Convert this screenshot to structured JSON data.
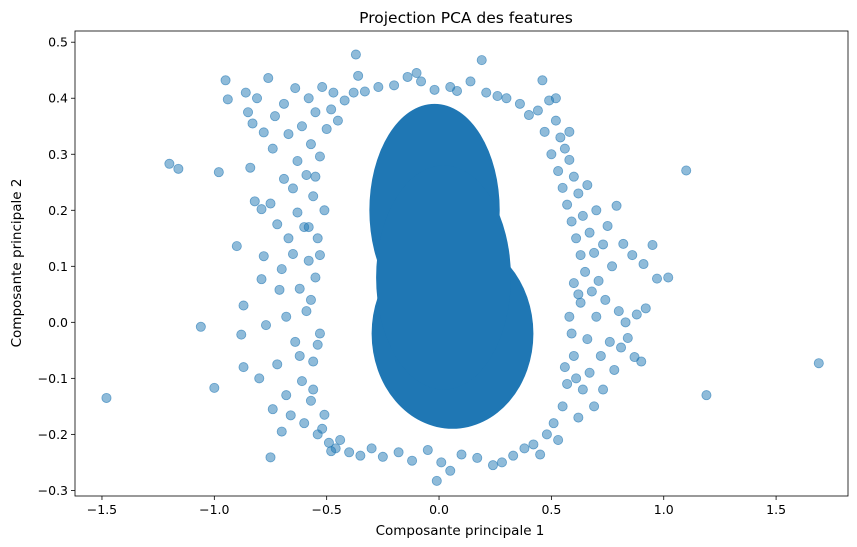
{
  "chart_data": {
    "type": "scatter",
    "title": "Projection PCA des features",
    "xlabel": "Composante principale 1",
    "ylabel": "Composante principale 2",
    "xlim": [
      -1.62,
      1.82
    ],
    "ylim": [
      -0.31,
      0.52
    ],
    "xticks": [
      -1.5,
      -1.0,
      -0.5,
      0.0,
      0.5,
      1.0,
      1.5
    ],
    "xtick_labels": [
      "−1.5",
      "−1.0",
      "−0.5",
      "0.0",
      "0.5",
      "1.0",
      "1.5"
    ],
    "yticks": [
      -0.3,
      -0.2,
      -0.1,
      0.0,
      0.1,
      0.2,
      0.3,
      0.4,
      0.5
    ],
    "ytick_labels": [
      "−0.3",
      "−0.2",
      "−0.1",
      "0.0",
      "0.1",
      "0.2",
      "0.3",
      "0.4",
      "0.5"
    ],
    "grid": false,
    "legend": "none",
    "marker_color": "#1f77b4",
    "marker_alpha": 0.5,
    "dense_core": {
      "description": "dense cloud of overlapping points",
      "lobes": [
        {
          "cx": -0.02,
          "cy": 0.2,
          "rx": 0.29,
          "ry": 0.19
        },
        {
          "cx": 0.06,
          "cy": -0.02,
          "rx": 0.36,
          "ry": 0.17
        },
        {
          "cx": 0.02,
          "cy": 0.08,
          "rx": 0.3,
          "ry": 0.2
        }
      ]
    },
    "points": [
      {
        "x": -1.48,
        "y": -0.135
      },
      {
        "x": -1.2,
        "y": 0.283
      },
      {
        "x": -1.16,
        "y": 0.274
      },
      {
        "x": -1.06,
        "y": -0.008
      },
      {
        "x": -1.0,
        "y": -0.117
      },
      {
        "x": -0.98,
        "y": 0.268
      },
      {
        "x": -0.95,
        "y": 0.432
      },
      {
        "x": -0.94,
        "y": 0.398
      },
      {
        "x": -0.9,
        "y": 0.136
      },
      {
        "x": -0.88,
        "y": -0.022
      },
      {
        "x": -0.87,
        "y": 0.03
      },
      {
        "x": -0.87,
        "y": -0.08
      },
      {
        "x": -0.86,
        "y": 0.41
      },
      {
        "x": -0.85,
        "y": 0.375
      },
      {
        "x": -0.84,
        "y": 0.276
      },
      {
        "x": -0.83,
        "y": 0.355
      },
      {
        "x": -0.82,
        "y": 0.216
      },
      {
        "x": -0.81,
        "y": 0.4
      },
      {
        "x": -0.8,
        "y": -0.1
      },
      {
        "x": -0.79,
        "y": 0.202
      },
      {
        "x": -0.79,
        "y": 0.077
      },
      {
        "x": -0.78,
        "y": 0.118
      },
      {
        "x": -0.78,
        "y": 0.339
      },
      {
        "x": -0.77,
        "y": -0.005
      },
      {
        "x": -0.76,
        "y": 0.436
      },
      {
        "x": -0.75,
        "y": -0.241
      },
      {
        "x": -0.75,
        "y": 0.212
      },
      {
        "x": -0.74,
        "y": 0.31
      },
      {
        "x": -0.74,
        "y": -0.155
      },
      {
        "x": -0.73,
        "y": 0.368
      },
      {
        "x": -0.72,
        "y": -0.075
      },
      {
        "x": -0.72,
        "y": 0.175
      },
      {
        "x": -0.71,
        "y": 0.058
      },
      {
        "x": -0.7,
        "y": 0.095
      },
      {
        "x": -0.7,
        "y": -0.195
      },
      {
        "x": -0.69,
        "y": 0.39
      },
      {
        "x": -0.69,
        "y": 0.256
      },
      {
        "x": -0.68,
        "y": 0.01
      },
      {
        "x": -0.68,
        "y": -0.13
      },
      {
        "x": -0.67,
        "y": 0.15
      },
      {
        "x": -0.67,
        "y": 0.336
      },
      {
        "x": -0.66,
        "y": -0.166
      },
      {
        "x": -0.65,
        "y": 0.239
      },
      {
        "x": -0.65,
        "y": 0.122
      },
      {
        "x": -0.64,
        "y": 0.418
      },
      {
        "x": -0.64,
        "y": -0.035
      },
      {
        "x": -0.63,
        "y": 0.288
      },
      {
        "x": -0.63,
        "y": 0.196
      },
      {
        "x": -0.62,
        "y": -0.06
      },
      {
        "x": -0.62,
        "y": 0.06
      },
      {
        "x": -0.61,
        "y": 0.35
      },
      {
        "x": -0.61,
        "y": -0.105
      },
      {
        "x": -0.6,
        "y": 0.17
      },
      {
        "x": -0.6,
        "y": -0.18
      },
      {
        "x": -0.59,
        "y": 0.263
      },
      {
        "x": -0.59,
        "y": 0.02
      },
      {
        "x": -0.58,
        "y": 0.4
      },
      {
        "x": -0.58,
        "y": 0.11
      },
      {
        "x": -0.57,
        "y": -0.14
      },
      {
        "x": -0.57,
        "y": 0.318
      },
      {
        "x": -0.56,
        "y": 0.225
      },
      {
        "x": -0.56,
        "y": -0.07
      },
      {
        "x": -0.55,
        "y": 0.08
      },
      {
        "x": -0.55,
        "y": 0.375
      },
      {
        "x": -0.54,
        "y": -0.2
      },
      {
        "x": -0.54,
        "y": 0.15
      },
      {
        "x": -0.53,
        "y": 0.296
      },
      {
        "x": -0.53,
        "y": -0.02
      },
      {
        "x": -0.52,
        "y": 0.42
      },
      {
        "x": -0.51,
        "y": -0.165
      },
      {
        "x": -0.51,
        "y": 0.2
      },
      {
        "x": -0.5,
        "y": 0.345
      },
      {
        "x": -0.49,
        "y": -0.215
      },
      {
        "x": -0.48,
        "y": 0.38
      },
      {
        "x": -0.47,
        "y": 0.41
      },
      {
        "x": -0.46,
        "y": -0.225
      },
      {
        "x": -0.45,
        "y": 0.36
      },
      {
        "x": -0.44,
        "y": -0.21
      },
      {
        "x": -0.42,
        "y": 0.396
      },
      {
        "x": -0.4,
        "y": -0.232
      },
      {
        "x": -0.38,
        "y": 0.41
      },
      {
        "x": -0.37,
        "y": 0.478
      },
      {
        "x": -0.36,
        "y": 0.44
      },
      {
        "x": -0.35,
        "y": -0.238
      },
      {
        "x": -0.33,
        "y": 0.412
      },
      {
        "x": -0.3,
        "y": -0.225
      },
      {
        "x": -0.27,
        "y": 0.42
      },
      {
        "x": -0.25,
        "y": -0.24
      },
      {
        "x": -0.2,
        "y": 0.423
      },
      {
        "x": -0.18,
        "y": -0.232
      },
      {
        "x": -0.14,
        "y": 0.438
      },
      {
        "x": -0.12,
        "y": -0.247
      },
      {
        "x": -0.08,
        "y": 0.43
      },
      {
        "x": -0.05,
        "y": -0.228
      },
      {
        "x": -0.02,
        "y": 0.415
      },
      {
        "x": -0.01,
        "y": -0.283
      },
      {
        "x": 0.01,
        "y": -0.25
      },
      {
        "x": 0.05,
        "y": 0.42
      },
      {
        "x": 0.08,
        "y": 0.413
      },
      {
        "x": 0.1,
        "y": -0.236
      },
      {
        "x": 0.14,
        "y": 0.43
      },
      {
        "x": 0.17,
        "y": -0.242
      },
      {
        "x": 0.19,
        "y": 0.468
      },
      {
        "x": 0.21,
        "y": 0.41
      },
      {
        "x": 0.24,
        "y": -0.255
      },
      {
        "x": 0.26,
        "y": 0.404
      },
      {
        "x": 0.28,
        "y": -0.25
      },
      {
        "x": 0.3,
        "y": 0.4
      },
      {
        "x": 0.33,
        "y": -0.238
      },
      {
        "x": 0.36,
        "y": 0.39
      },
      {
        "x": 0.38,
        "y": -0.225
      },
      {
        "x": 0.4,
        "y": 0.37
      },
      {
        "x": 0.42,
        "y": -0.218
      },
      {
        "x": 0.44,
        "y": 0.378
      },
      {
        "x": 0.45,
        "y": -0.236
      },
      {
        "x": 0.46,
        "y": 0.432
      },
      {
        "x": 0.47,
        "y": 0.34
      },
      {
        "x": 0.48,
        "y": -0.2
      },
      {
        "x": 0.49,
        "y": 0.396
      },
      {
        "x": 0.5,
        "y": 0.3
      },
      {
        "x": 0.51,
        "y": -0.18
      },
      {
        "x": 0.52,
        "y": 0.36
      },
      {
        "x": 0.53,
        "y": -0.21
      },
      {
        "x": 0.53,
        "y": 0.27
      },
      {
        "x": 0.54,
        "y": 0.33
      },
      {
        "x": 0.55,
        "y": -0.15
      },
      {
        "x": 0.55,
        "y": 0.24
      },
      {
        "x": 0.56,
        "y": 0.31
      },
      {
        "x": 0.57,
        "y": -0.11
      },
      {
        "x": 0.57,
        "y": 0.21
      },
      {
        "x": 0.58,
        "y": 0.29
      },
      {
        "x": 0.59,
        "y": 0.18
      },
      {
        "x": 0.6,
        "y": 0.26
      },
      {
        "x": 0.6,
        "y": -0.06
      },
      {
        "x": 0.61,
        "y": 0.15
      },
      {
        "x": 0.62,
        "y": 0.23
      },
      {
        "x": 0.62,
        "y": -0.17
      },
      {
        "x": 0.63,
        "y": 0.12
      },
      {
        "x": 0.63,
        "y": 0.035
      },
      {
        "x": 0.64,
        "y": 0.19
      },
      {
        "x": 0.64,
        "y": -0.12
      },
      {
        "x": 0.65,
        "y": 0.09
      },
      {
        "x": 0.66,
        "y": 0.245
      },
      {
        "x": 0.66,
        "y": -0.03
      },
      {
        "x": 0.67,
        "y": 0.16
      },
      {
        "x": 0.67,
        "y": -0.09
      },
      {
        "x": 0.68,
        "y": 0.055
      },
      {
        "x": 0.69,
        "y": 0.124
      },
      {
        "x": 0.69,
        "y": -0.15
      },
      {
        "x": 0.7,
        "y": 0.2
      },
      {
        "x": 0.7,
        "y": 0.01
      },
      {
        "x": 0.71,
        "y": 0.074
      },
      {
        "x": 0.72,
        "y": -0.06
      },
      {
        "x": 0.73,
        "y": 0.139
      },
      {
        "x": 0.73,
        "y": -0.12
      },
      {
        "x": 0.74,
        "y": 0.04
      },
      {
        "x": 0.75,
        "y": 0.172
      },
      {
        "x": 0.76,
        "y": -0.035
      },
      {
        "x": 0.77,
        "y": 0.1
      },
      {
        "x": 0.78,
        "y": -0.085
      },
      {
        "x": 0.79,
        "y": 0.208
      },
      {
        "x": 0.8,
        "y": 0.02
      },
      {
        "x": 0.81,
        "y": -0.045
      },
      {
        "x": 0.82,
        "y": 0.14
      },
      {
        "x": 0.83,
        "y": 0.0
      },
      {
        "x": 0.84,
        "y": -0.028
      },
      {
        "x": 0.86,
        "y": 0.12
      },
      {
        "x": 0.87,
        "y": -0.062
      },
      {
        "x": 0.88,
        "y": 0.014
      },
      {
        "x": 0.9,
        "y": -0.07
      },
      {
        "x": 0.91,
        "y": 0.104
      },
      {
        "x": 0.92,
        "y": 0.025
      },
      {
        "x": 0.95,
        "y": 0.138
      },
      {
        "x": 0.97,
        "y": 0.078
      },
      {
        "x": 1.02,
        "y": 0.08
      },
      {
        "x": 1.1,
        "y": 0.271
      },
      {
        "x": 1.19,
        "y": -0.13
      },
      {
        "x": 1.69,
        "y": -0.073
      },
      {
        "x": -0.58,
        "y": 0.17
      },
      {
        "x": -0.57,
        "y": 0.04
      },
      {
        "x": -0.56,
        "y": -0.12
      },
      {
        "x": -0.55,
        "y": 0.26
      },
      {
        "x": -0.54,
        "y": -0.04
      },
      {
        "x": -0.53,
        "y": 0.12
      },
      {
        "x": 0.56,
        "y": -0.08
      },
      {
        "x": 0.58,
        "y": 0.01
      },
      {
        "x": 0.59,
        "y": -0.02
      },
      {
        "x": 0.6,
        "y": 0.07
      },
      {
        "x": 0.61,
        "y": -0.1
      },
      {
        "x": 0.62,
        "y": 0.05
      },
      {
        "x": 0.58,
        "y": 0.34
      },
      {
        "x": 0.52,
        "y": 0.4
      },
      {
        "x": -0.52,
        "y": -0.19
      },
      {
        "x": -0.48,
        "y": -0.23
      },
      {
        "x": 0.05,
        "y": -0.265
      },
      {
        "x": -0.1,
        "y": 0.445
      }
    ]
  }
}
